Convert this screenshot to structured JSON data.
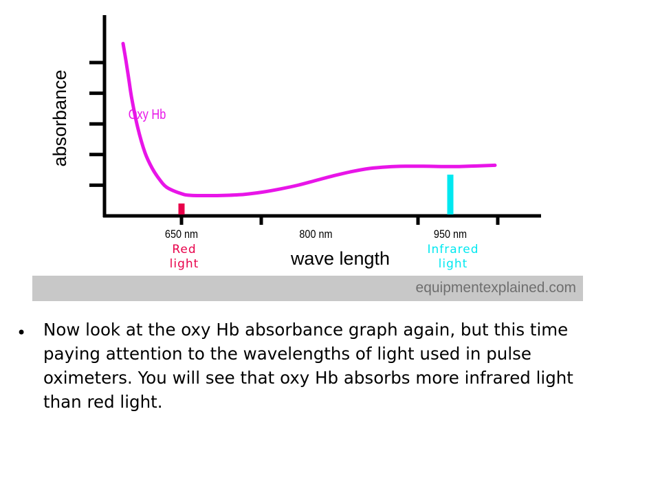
{
  "chart_data": {
    "type": "line",
    "title": "",
    "xlabel": "wave length",
    "ylabel": "absorbance",
    "x_ticks": [
      {
        "value": 650,
        "label": "650 nm"
      },
      {
        "value": 800,
        "label": "800 nm"
      },
      {
        "value": 950,
        "label": "950 nm"
      }
    ],
    "y_tick_count": 5,
    "series": [
      {
        "name": "Oxy Hb",
        "color": "#e815e8",
        "x": [
          610,
          612,
          614,
          616,
          620,
          625,
          630,
          635,
          640,
          650,
          660,
          680,
          700,
          720,
          740,
          760,
          780,
          800,
          820,
          840,
          860,
          880,
          900,
          920,
          940,
          950,
          960,
          980,
          1000
        ],
        "y": [
          5.45,
          4.9,
          4.3,
          3.7,
          2.8,
          2.0,
          1.5,
          1.15,
          0.9,
          0.7,
          0.65,
          0.64,
          0.65,
          0.68,
          0.75,
          0.85,
          0.97,
          1.12,
          1.27,
          1.4,
          1.5,
          1.55,
          1.57,
          1.57,
          1.56,
          1.56,
          1.56,
          1.58,
          1.6
        ]
      }
    ],
    "markers": [
      {
        "x": 650,
        "label_line1": "Red",
        "label_line2": "light",
        "color": "#e8004a"
      },
      {
        "x": 950,
        "label_line1": "Infrared",
        "label_line2": "light",
        "color": "#00e8f0"
      }
    ],
    "xlim": [
      590,
      1050
    ],
    "ylim": [
      0,
      6
    ]
  },
  "banner": "equipmentexplained.com",
  "bullet": "Now look at the oxy Hb absorbance graph again, but this time paying attention to the wavelengths of light used in pulse oximeters. You will see that oxy Hb absorbs more infrared light than red light."
}
